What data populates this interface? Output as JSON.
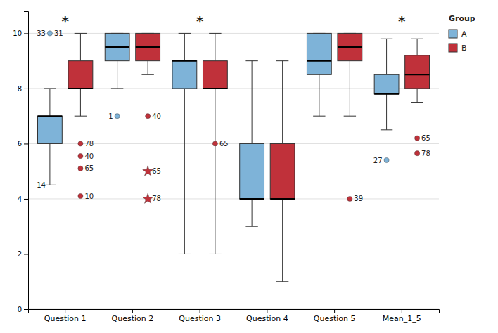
{
  "chart_data": {
    "type": "box",
    "categories": [
      "Question 1",
      "Question 2",
      "Question 3",
      "Question 4",
      "Question 5",
      "Mean_1_5"
    ],
    "series": [
      {
        "name": "A",
        "color": "#7EB3D8",
        "boxes": [
          {
            "whislo": 4.5,
            "q1": 6.0,
            "med": 7.0,
            "q3": 7.0,
            "whishi": 8.0
          },
          {
            "whislo": 8.0,
            "q1": 9.0,
            "med": 9.5,
            "q3": 10.0,
            "whishi": 10.0
          },
          {
            "whislo": 2.0,
            "q1": 8.0,
            "med": 9.0,
            "q3": 9.0,
            "whishi": 10.0
          },
          {
            "whislo": 3.0,
            "q1": 4.0,
            "med": 4.0,
            "q3": 6.0,
            "whishi": 9.0
          },
          {
            "whislo": 7.0,
            "q1": 8.5,
            "med": 9.0,
            "q3": 10.0,
            "whishi": 10.0
          },
          {
            "whislo": 6.5,
            "q1": 7.8,
            "med": 7.8,
            "q3": 8.5,
            "whishi": 9.8
          }
        ],
        "outliers": [
          {
            "category": "Question 1",
            "value": 10.0,
            "label": "33",
            "marker": "circle"
          },
          {
            "category": "Question 2",
            "value": 7.0,
            "label": "1",
            "marker": "circle"
          },
          {
            "category": "Mean_1_5",
            "value": 5.4,
            "label": "27",
            "marker": "circle"
          }
        ]
      },
      {
        "name": "B",
        "color": "#C0313A",
        "boxes": [
          {
            "whislo": 7.0,
            "q1": 8.0,
            "med": 8.0,
            "q3": 9.0,
            "whishi": 10.0
          },
          {
            "whislo": 8.5,
            "q1": 9.0,
            "med": 9.5,
            "q3": 10.0,
            "whishi": 10.0
          },
          {
            "whislo": 2.0,
            "q1": 8.0,
            "med": 8.0,
            "q3": 9.0,
            "whishi": 10.0
          },
          {
            "whislo": 1.0,
            "q1": 4.0,
            "med": 4.0,
            "q3": 6.0,
            "whishi": 9.0
          },
          {
            "whislo": 7.0,
            "q1": 9.0,
            "med": 9.5,
            "q3": 10.0,
            "whishi": 10.0
          },
          {
            "whislo": 7.5,
            "q1": 8.0,
            "med": 8.5,
            "q3": 9.2,
            "whishi": 9.8
          }
        ],
        "outliers": [
          {
            "category": "Question 1",
            "value": 6.0,
            "label": "78",
            "marker": "circle"
          },
          {
            "category": "Question 1",
            "value": 5.55,
            "label": "40",
            "marker": "circle"
          },
          {
            "category": "Question 1",
            "value": 5.1,
            "label": "65",
            "marker": "circle"
          },
          {
            "category": "Question 1",
            "value": 4.1,
            "label": "10",
            "marker": "circle"
          },
          {
            "category": "Question 2",
            "value": 7.0,
            "label": "40",
            "marker": "circle"
          },
          {
            "category": "Question 3",
            "value": 6.0,
            "label": "65",
            "marker": "circle"
          },
          {
            "category": "Question 5",
            "value": 4.0,
            "label": "39",
            "marker": "circle"
          },
          {
            "category": "Mean_1_5",
            "value": 6.2,
            "label": "65",
            "marker": "circle"
          },
          {
            "category": "Mean_1_5",
            "value": 5.65,
            "label": "78",
            "marker": "circle"
          },
          {
            "category": "Question 2",
            "value": 5.0,
            "label": "65",
            "marker": "star"
          },
          {
            "category": "Question 2",
            "value": 4.0,
            "label": "78",
            "marker": "star"
          }
        ]
      }
    ],
    "annotations": [
      {
        "text": "31",
        "category": "Question 1",
        "series": "A",
        "y": 10.0
      },
      {
        "text": "14",
        "category": "Question 1",
        "series": "A",
        "y": 4.5
      },
      {
        "text": "*",
        "category": "Question 1",
        "y": 10.45
      },
      {
        "text": "*",
        "category": "Question 3",
        "y": 10.45
      },
      {
        "text": "*",
        "category": "Mean_1_5",
        "y": 10.45
      }
    ],
    "legend_title": "Group",
    "legend": "right",
    "ylim": [
      0,
      10.8
    ],
    "yticks": [
      0,
      2,
      4,
      6,
      8,
      10
    ],
    "grid": true
  }
}
